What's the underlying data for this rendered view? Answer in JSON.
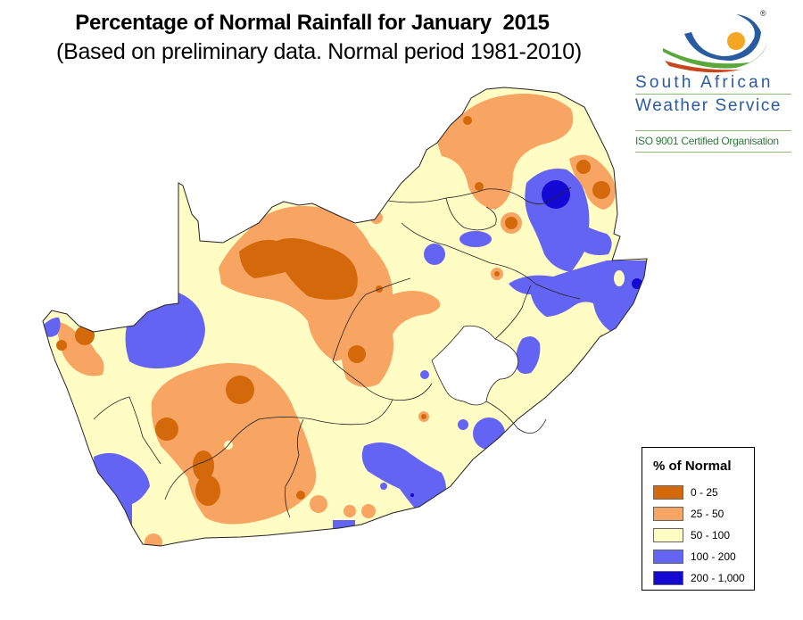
{
  "title": "Percentage of Normal Rainfall for January  2015",
  "subtitle": "(Based on preliminary data. Normal period 1981-2010)",
  "logo": {
    "name_line1": "South  African",
    "name_line2": "Weather Service",
    "certification": "ISO 9001 Certified Organisation",
    "registered_mark": "®",
    "colors": {
      "blue": "#2a5aa0",
      "green": "#5aa83c",
      "sun": "#f5a623",
      "red": "#c8461e"
    }
  },
  "legend": {
    "title": "% of Normal",
    "items": [
      {
        "label": "0 - 25",
        "color": "#d4690c"
      },
      {
        "label": "25 - 50",
        "color": "#f8a462"
      },
      {
        "label": "50 - 100",
        "color": "#fffcc4"
      },
      {
        "label": "100 - 200",
        "color": "#6464f4"
      },
      {
        "label": "200 - 1,000",
        "color": "#1408d4"
      }
    ]
  },
  "map": {
    "region": "South Africa",
    "month": "January 2015",
    "colors": {
      "country_fill": "#fffcc4",
      "border": "#222222",
      "background": "#ffffff"
    }
  }
}
